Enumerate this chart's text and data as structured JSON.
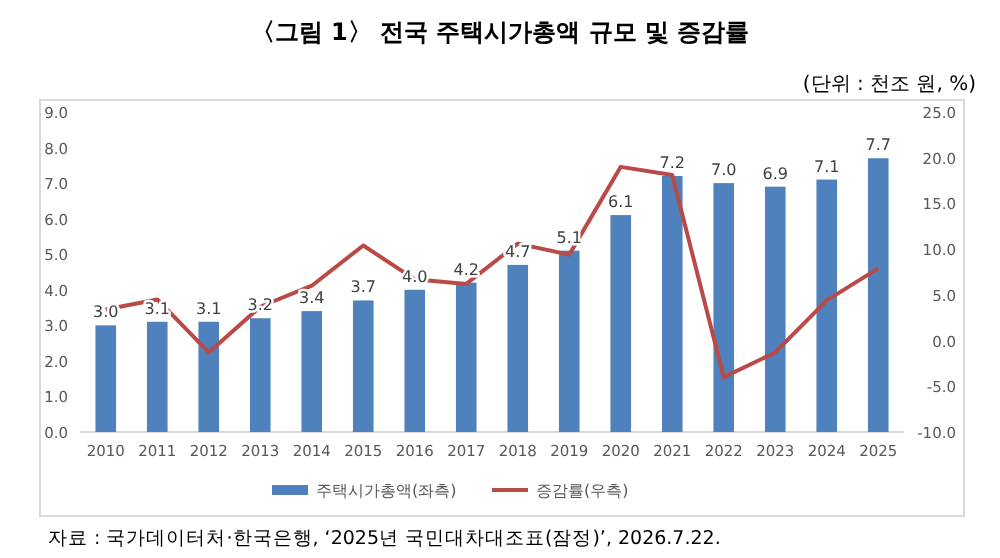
{
  "chart_data": {
    "type": "bar",
    "title": "〈그림 1〉 전국 주택시가총액 규모 및 증감률",
    "subtitle": "(단위 : 천조 원, %)",
    "categories": [
      "2010",
      "2011",
      "2012",
      "2013",
      "2014",
      "2015",
      "2016",
      "2017",
      "2018",
      "2019",
      "2020",
      "2021",
      "2022",
      "2023",
      "2024",
      "2025"
    ],
    "series": [
      {
        "name": "주택시가총액(좌측)",
        "color": "#4f81bd",
        "values": [
          3.0,
          3.1,
          3.1,
          3.2,
          3.4,
          3.7,
          4.0,
          4.2,
          4.7,
          5.1,
          6.1,
          7.2,
          7.0,
          6.9,
          7.1,
          7.7
        ],
        "value_labels": [
          "3.0",
          "3.1",
          "3.1",
          "3.2",
          "3.4",
          "3.7",
          "4.0",
          "4.2",
          "4.7",
          "5.1",
          "6.1",
          "7.2",
          "7.0",
          "6.9",
          "7.1",
          "7.7"
        ]
      },
      {
        "name": "증감률(우측)",
        "type": "line",
        "axis": "y2",
        "color": "#b94a48",
        "values": [
          3.4,
          4.5,
          -1.3,
          3.7,
          6.0,
          10.4,
          6.7,
          6.2,
          10.6,
          9.4,
          19.0,
          18.1,
          -4.0,
          -1.3,
          4.4,
          7.9
        ]
      }
    ],
    "ylim": [
      0,
      9
    ],
    "yticks": [
      {
        "value": 0,
        "label": "0.0"
      },
      {
        "value": 1,
        "label": "1.0"
      },
      {
        "value": 2,
        "label": "2.0"
      },
      {
        "value": 3,
        "label": "3.0"
      },
      {
        "value": 4,
        "label": "4.0"
      },
      {
        "value": 5,
        "label": "5.0"
      },
      {
        "value": 6,
        "label": "6.0"
      },
      {
        "value": 7,
        "label": "7.0"
      },
      {
        "value": 8,
        "label": "8.0"
      },
      {
        "value": 9,
        "label": "9.0"
      }
    ],
    "y2lim": [
      -10,
      25
    ],
    "y2ticks": [
      {
        "value": -10,
        "label": "-10.0"
      },
      {
        "value": -5,
        "label": "-5.0"
      },
      {
        "value": 0,
        "label": "0.0"
      },
      {
        "value": 5,
        "label": "5.0"
      },
      {
        "value": 10,
        "label": "10.0"
      },
      {
        "value": 15,
        "label": "15.0"
      },
      {
        "value": 20,
        "label": "20.0"
      },
      {
        "value": 25,
        "label": "25.0"
      }
    ],
    "legend": "bottom",
    "grid": false,
    "annotations": [
      "자료 : 국가데이터처·한국은행, ‘2025년 국민대차대조표(잠정)’, 2026.7.22."
    ]
  }
}
